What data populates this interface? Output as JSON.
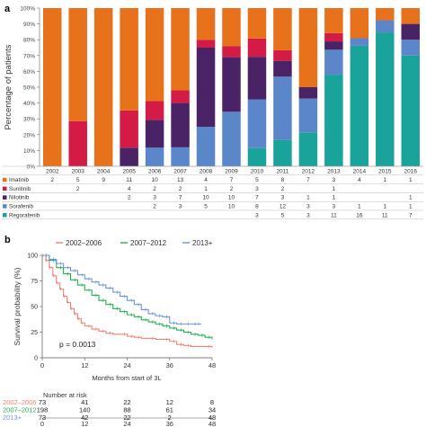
{
  "colors": {
    "imatinib": "#e8711c",
    "sunitinib": "#d41b45",
    "nilotinib": "#4a2366",
    "sorafenib": "#5b86c9",
    "regorafenib": "#1aa39a",
    "km_2002_2006": "#f08372",
    "km_2007_2012": "#22b14c",
    "km_2013": "#6a95e6"
  },
  "chart_data": [
    {
      "panel_label": "a",
      "type": "bar",
      "stacked": true,
      "ylabel": "Percentage of patients",
      "ylim": [
        0,
        100
      ],
      "yticks": [
        "0%",
        "10%",
        "20%",
        "30%",
        "40%",
        "50%",
        "60%",
        "70%",
        "80%",
        "90%",
        "100%"
      ],
      "categories": [
        "2002",
        "2003",
        "2004",
        "2005",
        "2006",
        "2007",
        "2008",
        "2009",
        "2010",
        "2011",
        "2012",
        "2013",
        "2014",
        "2015",
        "2016"
      ],
      "series": [
        {
          "name": "Imatinib",
          "color_key": "imatinib",
          "counts": [
            "2",
            "5",
            "9",
            "11",
            "10",
            "13",
            "4",
            "7",
            "5",
            "8",
            "7",
            "3",
            "4",
            "1",
            "1"
          ]
        },
        {
          "name": "Sunitinib",
          "color_key": "sunitinib",
          "counts": [
            "",
            "2",
            "",
            "4",
            "2",
            "2",
            "1",
            "2",
            "3",
            "2",
            "",
            "1",
            "",
            "",
            ""
          ]
        },
        {
          "name": "Nilotinib",
          "color_key": "nilotinib",
          "counts": [
            "",
            "",
            "",
            "2",
            "3",
            "7",
            "10",
            "10",
            "7",
            "3",
            "1",
            "1",
            "",
            "",
            "1"
          ]
        },
        {
          "name": "Sorafenib",
          "color_key": "sorafenib",
          "counts": [
            "",
            "",
            "",
            "",
            "2",
            "3",
            "5",
            "10",
            "8",
            "12",
            "3",
            "3",
            "1",
            "1",
            "1"
          ]
        },
        {
          "name": "Regorafenib",
          "color_key": "regorafenib",
          "counts": [
            "",
            "",
            "",
            "",
            "",
            "",
            "",
            "",
            "3",
            "5",
            "3",
            "11",
            "16",
            "11",
            "7"
          ]
        }
      ]
    },
    {
      "panel_label": "b",
      "type": "line",
      "ylabel": "Survival probability (%)",
      "xlabel": "Months from start of 3L",
      "xlim": [
        0,
        48
      ],
      "ylim": [
        0,
        100
      ],
      "xticks": [
        "0",
        "12",
        "24",
        "36",
        "48"
      ],
      "yticks": [
        "0",
        "25",
        "50",
        "75",
        "100"
      ],
      "legend_position": "top",
      "annotation": "p = 0.0013",
      "series": [
        {
          "name": "2002–2006",
          "color_key": "km_2002_2006",
          "x": [
            0,
            1,
            2,
            3,
            4,
            5,
            6,
            7,
            8,
            9,
            10,
            11,
            12,
            14,
            16,
            18,
            20,
            24,
            26,
            28,
            32,
            36,
            38,
            40,
            42,
            48
          ],
          "y": [
            100,
            95,
            88,
            80,
            73,
            67,
            60,
            54,
            48,
            43,
            38,
            34,
            31,
            28,
            26,
            24,
            23,
            21,
            20,
            19,
            18,
            16,
            13,
            12,
            11,
            10
          ]
        },
        {
          "name": "2007–2012",
          "color_key": "km_2007_2012",
          "x": [
            0,
            2,
            4,
            6,
            8,
            10,
            12,
            14,
            16,
            18,
            20,
            22,
            24,
            26,
            28,
            30,
            32,
            34,
            36,
            38,
            40,
            42,
            44,
            46,
            48
          ],
          "y": [
            100,
            95,
            88,
            82,
            76,
            71,
            66,
            61,
            56,
            52,
            48,
            45,
            42,
            40,
            37,
            35,
            33,
            31,
            29,
            27,
            25,
            23,
            22,
            20,
            18
          ]
        },
        {
          "name": "2013+",
          "color_key": "km_2013",
          "x": [
            0,
            2,
            4,
            6,
            8,
            10,
            12,
            14,
            16,
            18,
            20,
            22,
            24,
            26,
            28,
            30,
            32,
            34,
            36,
            38,
            40,
            42,
            44,
            45
          ],
          "y": [
            100,
            96,
            92,
            88,
            85,
            81,
            77,
            74,
            71,
            68,
            64,
            60,
            56,
            52,
            47,
            43,
            41,
            40,
            34,
            33,
            33,
            33,
            33,
            33
          ]
        }
      ],
      "risk_table": {
        "title": "Number at risk",
        "rows": [
          {
            "name": "2002–2006",
            "color_key": "km_2002_2006",
            "values": [
              "73",
              "41",
              "22",
              "12",
              "8"
            ]
          },
          {
            "name": "2007–2012",
            "color_key": "km_2007_2012",
            "values": [
              "198",
              "140",
              "88",
              "61",
              "34"
            ]
          },
          {
            "name": "2013+",
            "color_key": "km_2013",
            "values": [
              "73",
              "42",
              "22",
              "2",
              "48"
            ]
          }
        ],
        "xticks": [
          "0",
          "12",
          "24",
          "36",
          "48"
        ]
      }
    }
  ]
}
